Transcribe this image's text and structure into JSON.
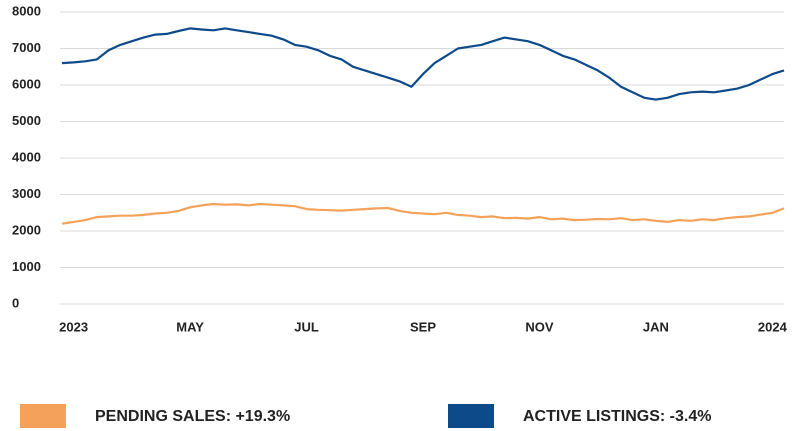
{
  "chart_data": {
    "type": "line",
    "categories": [
      null,
      "2023",
      null,
      null,
      null,
      null,
      null,
      null,
      null,
      null,
      null,
      "MAY",
      null,
      null,
      null,
      null,
      null,
      null,
      null,
      null,
      null,
      "JUL",
      null,
      null,
      null,
      null,
      null,
      null,
      null,
      null,
      null,
      "SEP",
      null,
      null,
      null,
      null,
      null,
      null,
      null,
      null,
      null,
      "NOV",
      null,
      null,
      null,
      null,
      null,
      null,
      null,
      null,
      null,
      "JAN",
      null,
      null,
      null,
      null,
      null,
      null,
      null,
      null,
      null,
      "2024",
      null
    ],
    "series": [
      {
        "name": "PENDING SALES: +19.3%",
        "color": "#f4a259",
        "values": [
          2200,
          2250,
          2300,
          2380,
          2400,
          2420,
          2420,
          2440,
          2480,
          2500,
          2550,
          2650,
          2700,
          2740,
          2720,
          2730,
          2700,
          2740,
          2720,
          2700,
          2680,
          2600,
          2580,
          2570,
          2560,
          2580,
          2600,
          2620,
          2630,
          2550,
          2500,
          2480,
          2460,
          2500,
          2440,
          2420,
          2380,
          2400,
          2350,
          2360,
          2340,
          2380,
          2320,
          2340,
          2300,
          2310,
          2330,
          2320,
          2350,
          2300,
          2320,
          2280,
          2250,
          2300,
          2280,
          2320,
          2300,
          2350,
          2380,
          2400,
          2450,
          2500,
          2620
        ]
      },
      {
        "name": "ACTIVE LISTINGS: -3.4%",
        "color": "#0d4a8a",
        "values": [
          6600,
          6620,
          6650,
          6700,
          6950,
          7100,
          7200,
          7300,
          7380,
          7400,
          7480,
          7550,
          7520,
          7500,
          7550,
          7500,
          7450,
          7400,
          7350,
          7250,
          7100,
          7050,
          6950,
          6800,
          6700,
          6500,
          6400,
          6300,
          6200,
          6100,
          5950,
          6300,
          6600,
          6800,
          7000,
          7050,
          7100,
          7200,
          7300,
          7250,
          7200,
          7100,
          6950,
          6800,
          6700,
          6550,
          6400,
          6200,
          5950,
          5800,
          5650,
          5600,
          5650,
          5750,
          5800,
          5820,
          5800,
          5850,
          5900,
          6000,
          6150,
          6300,
          6400
        ]
      }
    ],
    "ylim": [
      0,
      8000
    ],
    "yticks": [
      0,
      1000,
      2000,
      3000,
      4000,
      5000,
      6000,
      7000,
      8000
    ],
    "grid": true,
    "legend": "bottom"
  }
}
